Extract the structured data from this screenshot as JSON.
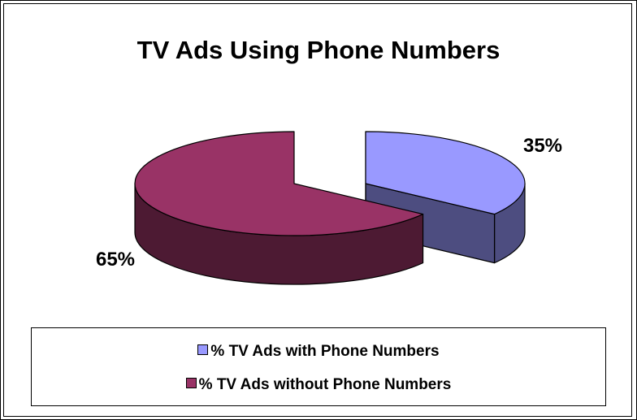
{
  "chart_data": {
    "type": "pie",
    "title": "TV Ads Using Phone Numbers",
    "categories": [
      "% TV Ads with Phone Numbers",
      "% TV Ads without Phone Numbers"
    ],
    "values": [
      35,
      65
    ],
    "data_labels": [
      "35%",
      "65%"
    ],
    "colors": [
      "#9999FF",
      "#993366"
    ],
    "side_colors": [
      "#4D4D80",
      "#4D1A33"
    ],
    "style": "3d-exploded",
    "legend_position": "bottom"
  }
}
